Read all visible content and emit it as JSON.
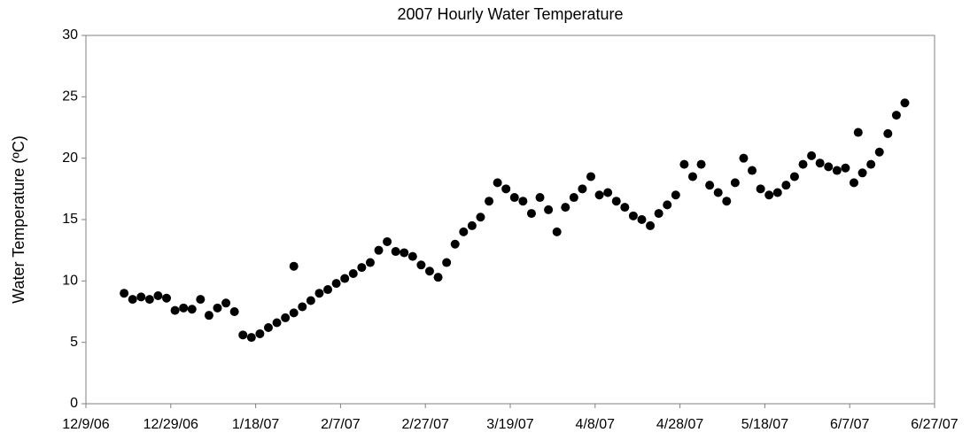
{
  "chart_data": {
    "type": "scatter",
    "title": "2007 Hourly Water Temperature",
    "y_label": "Water Temperature (ºC)",
    "color": "#000000",
    "x": [
      "2006-12-18",
      "2006-12-20",
      "2006-12-22",
      "2006-12-24",
      "2006-12-26",
      "2006-12-28",
      "2006-12-30",
      "2007-01-01",
      "2007-01-03",
      "2007-01-05",
      "2007-01-07",
      "2007-01-09",
      "2007-01-11",
      "2007-01-13",
      "2007-01-15",
      "2007-01-17",
      "2007-01-19",
      "2007-01-21",
      "2007-01-23",
      "2007-01-25",
      "2007-01-27",
      "2007-01-29",
      "2007-01-31",
      "2007-02-02",
      "2007-02-04",
      "2007-02-06",
      "2007-02-08",
      "2007-02-10",
      "2007-02-12",
      "2007-02-14",
      "2007-02-16",
      "2007-02-18",
      "2007-02-20",
      "2007-02-22",
      "2007-02-24",
      "2007-02-26",
      "2007-02-28",
      "2007-03-02",
      "2007-03-04",
      "2007-03-06",
      "2007-03-08",
      "2007-03-10",
      "2007-03-12",
      "2007-03-14",
      "2007-03-16",
      "2007-03-18",
      "2007-03-20",
      "2007-03-22",
      "2007-03-24",
      "2007-03-26",
      "2007-03-28",
      "2007-03-30",
      "2007-04-01",
      "2007-04-03",
      "2007-04-05",
      "2007-04-07",
      "2007-04-09",
      "2007-04-11",
      "2007-04-13",
      "2007-04-15",
      "2007-04-17",
      "2007-04-19",
      "2007-04-21",
      "2007-04-23",
      "2007-04-25",
      "2007-04-27",
      "2007-04-29",
      "2007-05-01",
      "2007-05-03",
      "2007-05-05",
      "2007-05-07",
      "2007-05-09",
      "2007-05-11",
      "2007-05-13",
      "2007-05-15",
      "2007-05-17",
      "2007-05-19",
      "2007-05-21",
      "2007-05-23",
      "2007-05-25",
      "2007-05-27",
      "2007-05-29",
      "2007-05-31",
      "2007-06-02",
      "2007-06-04",
      "2007-06-06",
      "2007-06-08",
      "2007-06-10",
      "2007-06-12",
      "2007-06-14",
      "2007-06-16",
      "2007-06-18",
      "2007-06-20",
      "2007-01-27",
      "2007-06-09"
    ],
    "values": [
      9,
      8.5,
      8.7,
      8.5,
      8.8,
      8.6,
      7.6,
      7.8,
      7.7,
      8.5,
      7.2,
      7.8,
      8.2,
      7.5,
      5.6,
      5.4,
      5.7,
      6.2,
      6.6,
      7,
      7.4,
      7.9,
      8.4,
      9,
      9.3,
      9.8,
      10.2,
      10.6,
      11.1,
      11.5,
      12.5,
      13.2,
      12.4,
      12.3,
      12,
      11.3,
      10.8,
      10.3,
      11.5,
      13,
      14,
      14.5,
      15.2,
      16.5,
      18,
      17.5,
      16.8,
      16.5,
      15.5,
      16.8,
      15.8,
      14,
      16,
      16.8,
      17.5,
      18.5,
      17,
      17.2,
      16.5,
      16,
      15.3,
      15,
      14.5,
      15.5,
      16.2,
      17,
      19.5,
      18.5,
      19.5,
      17.8,
      17.2,
      16.5,
      18,
      20,
      19,
      17.5,
      17,
      17.2,
      17.8,
      18.5,
      19.5,
      20.2,
      19.6,
      19.3,
      19,
      19.2,
      18,
      18.8,
      19.5,
      20.5,
      22,
      23.5,
      24.5,
      11.2,
      22.1
    ],
    "xlim": [
      "2006-12-09",
      "2007-06-27"
    ],
    "xticks": [
      {
        "value": "2006-12-09",
        "label": "12/9/06"
      },
      {
        "value": "2006-12-29",
        "label": "12/29/06"
      },
      {
        "value": "2007-01-18",
        "label": "1/18/07"
      },
      {
        "value": "2007-02-07",
        "label": "2/7/07"
      },
      {
        "value": "2007-02-27",
        "label": "2/27/07"
      },
      {
        "value": "2007-03-19",
        "label": "3/19/07"
      },
      {
        "value": "2007-04-08",
        "label": "4/8/07"
      },
      {
        "value": "2007-04-28",
        "label": "4/28/07"
      },
      {
        "value": "2007-05-18",
        "label": "5/18/07"
      },
      {
        "value": "2007-06-07",
        "label": "6/7/07"
      },
      {
        "value": "2007-06-27",
        "label": "6/27/07"
      }
    ],
    "ylim": [
      0,
      30
    ],
    "yticks": [
      0,
      5,
      10,
      15,
      20,
      25,
      30
    ],
    "grid": false
  }
}
